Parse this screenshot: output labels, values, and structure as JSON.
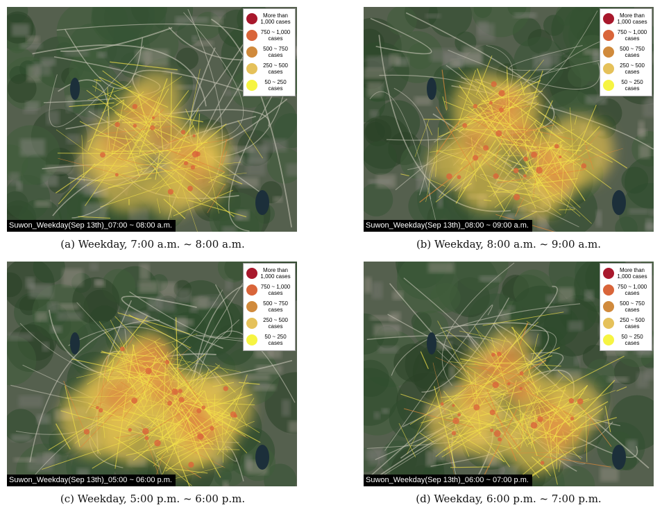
{
  "legend": {
    "items": [
      {
        "label": "More than 1,000 cases",
        "color": "#a8182c"
      },
      {
        "label": "750 ~ 1,000 cases",
        "color": "#d9653a"
      },
      {
        "label": "500 ~ 750 cases",
        "color": "#d08a3c"
      },
      {
        "label": "250 ~ 500 cases",
        "color": "#e5c15a"
      },
      {
        "label": "50 ~ 250 cases",
        "color": "#f6f442"
      }
    ]
  },
  "panels": [
    {
      "map_title": "Suwon_Weekday(Sep 13th)_07:00 ~ 08:00 a.m.",
      "caption": "(a) Weekday, 7:00 a.m. ~ 8:00 a.m."
    },
    {
      "map_title": "Suwon_Weekday(Sep 13th)_08:00 ~ 09:00 a.m.",
      "caption": "(b) Weekday, 8:00 a.m. ~ 9:00 a.m."
    },
    {
      "map_title": "Suwon_Weekday(Sep 13th)_05:00 ~ 06:00 p.m.",
      "caption": "(c) Weekday, 5:00 p.m. ~ 6:00 p.m."
    },
    {
      "map_title": "Suwon_Weekday(Sep 13th)_06:00 ~ 07:00 p.m.",
      "caption": "(d) Weekday, 6:00 p.m. ~ 7:00 p.m."
    }
  ]
}
